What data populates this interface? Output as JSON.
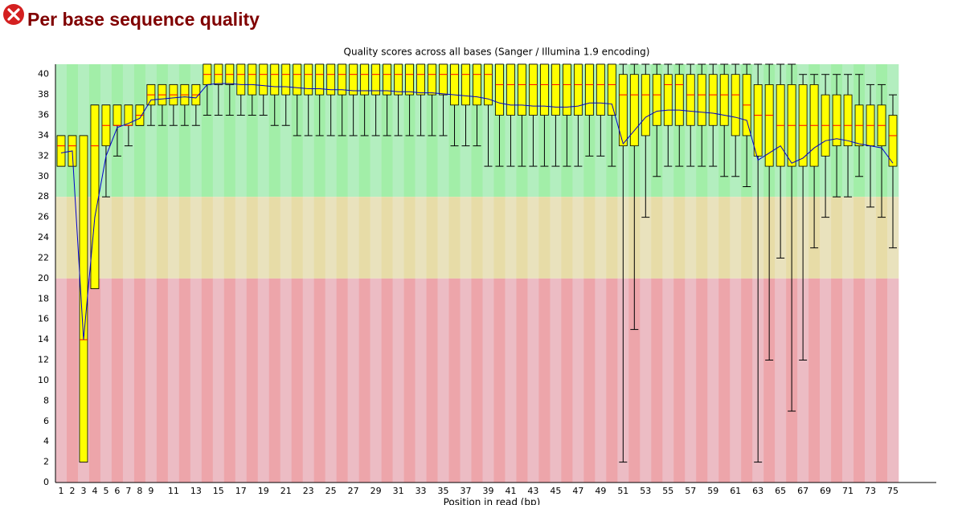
{
  "header": {
    "title": "Per base sequence quality"
  },
  "chart_data": {
    "type": "box",
    "title": "Quality scores across all bases (Sanger / Illumina 1.9 encoding)",
    "x_label": "Position in read (bp)",
    "categories": [
      "1",
      "2",
      "3",
      "4",
      "5",
      "6",
      "7",
      "8",
      "9",
      null,
      "11",
      null,
      "13",
      null,
      "15",
      null,
      "17",
      null,
      "19",
      null,
      "21",
      null,
      "23",
      null,
      "25",
      null,
      "27",
      null,
      "29",
      null,
      "31",
      null,
      "33",
      null,
      "35",
      null,
      "37",
      null,
      "39",
      null,
      "41",
      null,
      "43",
      null,
      "45",
      null,
      "47",
      null,
      "49",
      null,
      "51",
      null,
      "53",
      null,
      "55",
      null,
      "57",
      null,
      "59",
      null,
      "61",
      null,
      "63",
      null,
      "65",
      null,
      "67",
      null,
      "69",
      null,
      "71",
      null,
      "73",
      null,
      "75"
    ],
    "low": [
      31,
      31,
      2,
      19,
      28,
      32,
      33,
      35,
      35,
      35,
      35,
      35,
      35,
      36,
      36,
      36,
      36,
      36,
      36,
      35,
      35,
      34,
      34,
      34,
      34,
      34,
      34,
      34,
      34,
      34,
      34,
      34,
      34,
      34,
      34,
      33,
      33,
      33,
      31,
      31,
      31,
      31,
      31,
      31,
      31,
      31,
      31,
      32,
      32,
      31,
      2,
      15,
      26,
      30,
      31,
      31,
      31,
      31,
      31,
      30,
      30,
      29,
      2,
      12,
      22,
      7,
      12,
      23,
      26,
      28,
      28,
      30,
      27,
      26,
      23
    ],
    "q1": [
      31,
      31,
      2,
      19,
      33,
      35,
      35,
      35,
      37,
      37,
      37,
      37,
      37,
      39,
      39,
      39,
      38,
      38,
      38,
      38,
      38,
      38,
      38,
      38,
      38,
      38,
      38,
      38,
      38,
      38,
      38,
      38,
      38,
      38,
      38,
      37,
      37,
      37,
      37,
      36,
      36,
      36,
      36,
      36,
      36,
      36,
      36,
      36,
      36,
      36,
      33,
      33,
      34,
      35,
      35,
      35,
      35,
      35,
      35,
      35,
      34,
      34,
      32,
      31,
      31,
      31,
      31,
      31,
      32,
      33,
      33,
      33,
      33,
      33,
      31
    ],
    "median": [
      33,
      33,
      14,
      33,
      35,
      35,
      35,
      36,
      38,
      38,
      38,
      38,
      38,
      40,
      40,
      40,
      40,
      40,
      40,
      40,
      40,
      40,
      40,
      40,
      40,
      40,
      40,
      40,
      40,
      40,
      40,
      40,
      40,
      40,
      40,
      40,
      40,
      40,
      40,
      39,
      39,
      39,
      39,
      39,
      39,
      39,
      39,
      39,
      39,
      39,
      38,
      38,
      38,
      38,
      39,
      39,
      38,
      38,
      38,
      38,
      38,
      37,
      36,
      36,
      35,
      35,
      35,
      35,
      35,
      35,
      35,
      35,
      35,
      35,
      34
    ],
    "q3": [
      34,
      34,
      34,
      37,
      37,
      37,
      37,
      37,
      39,
      39,
      39,
      39,
      39,
      41,
      41,
      41,
      41,
      41,
      41,
      41,
      41,
      41,
      41,
      41,
      41,
      41,
      41,
      41,
      41,
      41,
      41,
      41,
      41,
      41,
      41,
      41,
      41,
      41,
      41,
      41,
      41,
      41,
      41,
      41,
      41,
      41,
      41,
      41,
      41,
      41,
      40,
      40,
      40,
      40,
      40,
      40,
      40,
      40,
      40,
      40,
      40,
      40,
      39,
      39,
      39,
      39,
      39,
      39,
      38,
      38,
      38,
      37,
      37,
      37,
      36
    ],
    "high": [
      34,
      34,
      34,
      37,
      37,
      37,
      37,
      37,
      39,
      39,
      39,
      39,
      39,
      41,
      41,
      41,
      41,
      41,
      41,
      41,
      41,
      41,
      41,
      41,
      41,
      41,
      41,
      41,
      41,
      41,
      41,
      41,
      41,
      41,
      41,
      41,
      41,
      41,
      41,
      41,
      41,
      41,
      41,
      41,
      41,
      41,
      41,
      41,
      41,
      41,
      41,
      41,
      41,
      41,
      41,
      41,
      41,
      41,
      41,
      41,
      41,
      41,
      41,
      41,
      41,
      41,
      40,
      40,
      40,
      40,
      40,
      40,
      39,
      39,
      38
    ],
    "mean": [
      32.3,
      32.5,
      14,
      26,
      32,
      34.8,
      35.2,
      35.7,
      37.5,
      37.6,
      37.7,
      37.8,
      37.7,
      39.0,
      39.1,
      39.1,
      39.0,
      39.0,
      38.9,
      38.8,
      38.8,
      38.7,
      38.6,
      38.6,
      38.5,
      38.5,
      38.4,
      38.4,
      38.4,
      38.4,
      38.3,
      38.3,
      38.2,
      38.2,
      38.1,
      38.0,
      37.9,
      37.8,
      37.6,
      37.2,
      37.0,
      37.0,
      36.9,
      36.9,
      36.8,
      36.8,
      36.9,
      37.2,
      37.2,
      37.1,
      33.2,
      34.5,
      35.8,
      36.4,
      36.5,
      36.5,
      36.4,
      36.3,
      36.2,
      36.0,
      35.8,
      35.5,
      31.6,
      32.3,
      33.0,
      31.3,
      31.8,
      32.8,
      33.5,
      33.7,
      33.5,
      33.2,
      33.0,
      32.8,
      31.3
    ],
    "box_color": "#ffff00",
    "median_color": "#ff0000",
    "mean_color": "#0000cc",
    "zones": [
      {
        "from": 28,
        "to": 41,
        "colors": [
          "#b3eebf",
          "#a2eea8"
        ]
      },
      {
        "from": 20,
        "to": 28,
        "colors": [
          "#e9e2bd",
          "#e7dca7"
        ]
      },
      {
        "from": 0,
        "to": 20,
        "colors": [
          "#ecbcc4",
          "#eda5aa"
        ]
      }
    ],
    "ylim": [
      0,
      41
    ],
    "yticks": [
      0,
      2,
      4,
      6,
      8,
      10,
      12,
      14,
      16,
      18,
      20,
      22,
      24,
      26,
      28,
      30,
      32,
      34,
      36,
      38,
      40
    ]
  }
}
